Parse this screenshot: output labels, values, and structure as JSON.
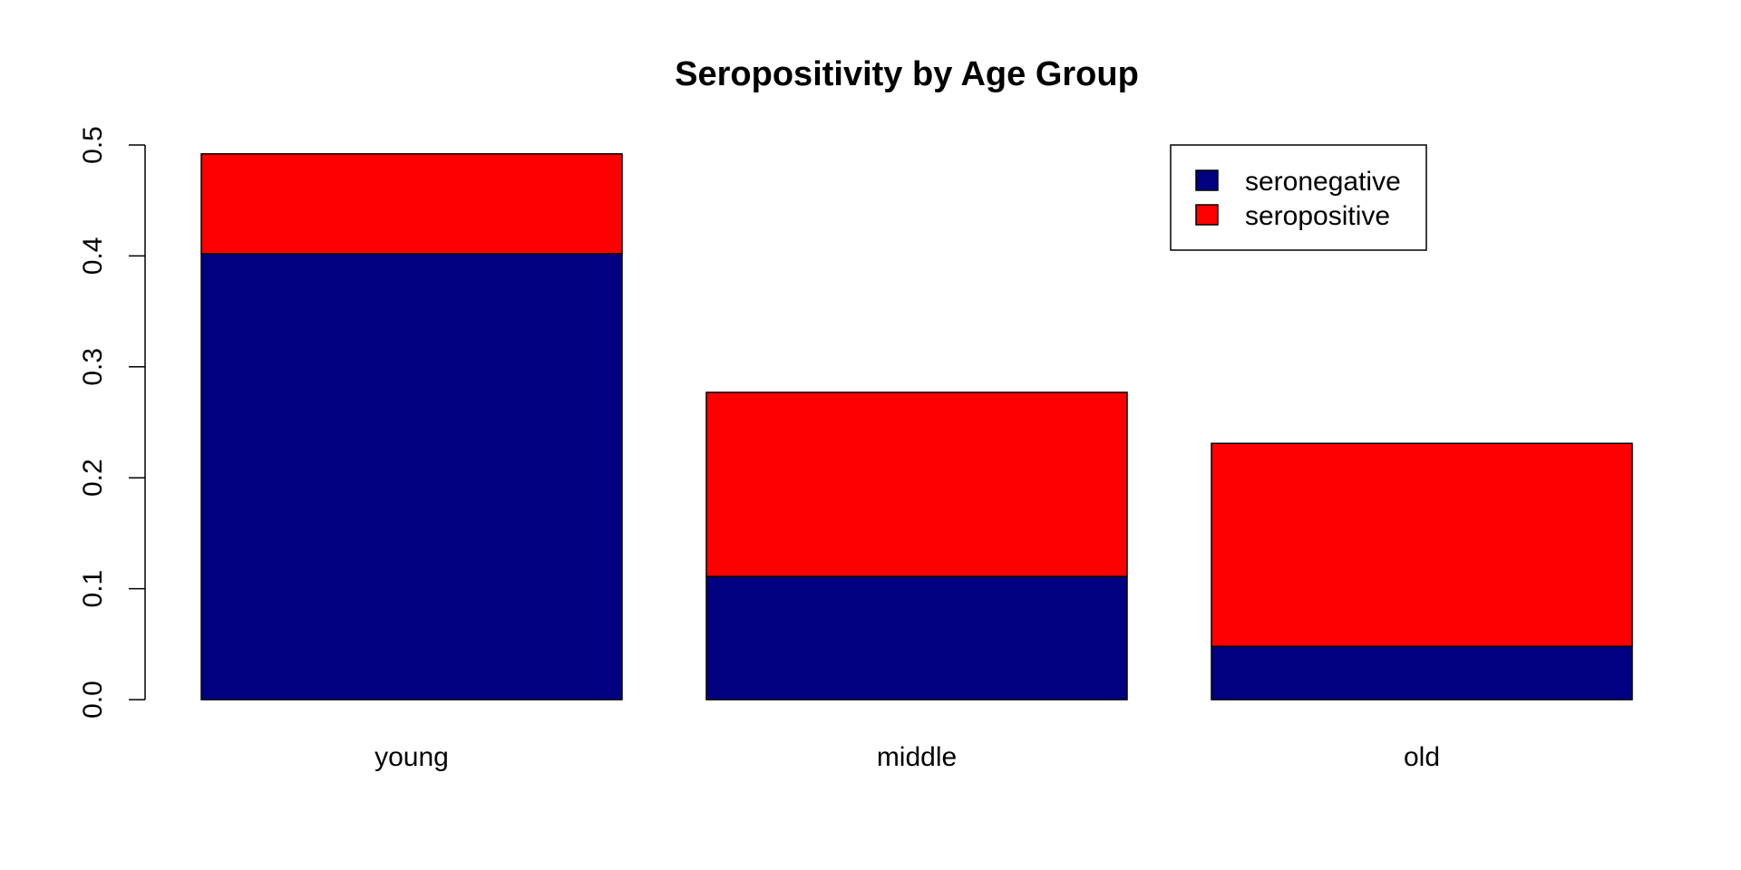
{
  "chart_data": {
    "type": "bar",
    "stacked": true,
    "title": "Seropositivity by Age Group",
    "xlabel": "",
    "ylabel": "",
    "categories": [
      "young",
      "middle",
      "old"
    ],
    "series": [
      {
        "name": "seronegative",
        "color": "#000080",
        "values": [
          0.402,
          0.111,
          0.048
        ]
      },
      {
        "name": "seropositive",
        "color": "#FF0000",
        "values": [
          0.09,
          0.166,
          0.183
        ]
      }
    ],
    "ylim": [
      0,
      0.5
    ],
    "y_ticks": [
      "0.0",
      "0.1",
      "0.2",
      "0.3",
      "0.4",
      "0.5"
    ],
    "grid": false,
    "legend_position": "top-right"
  }
}
